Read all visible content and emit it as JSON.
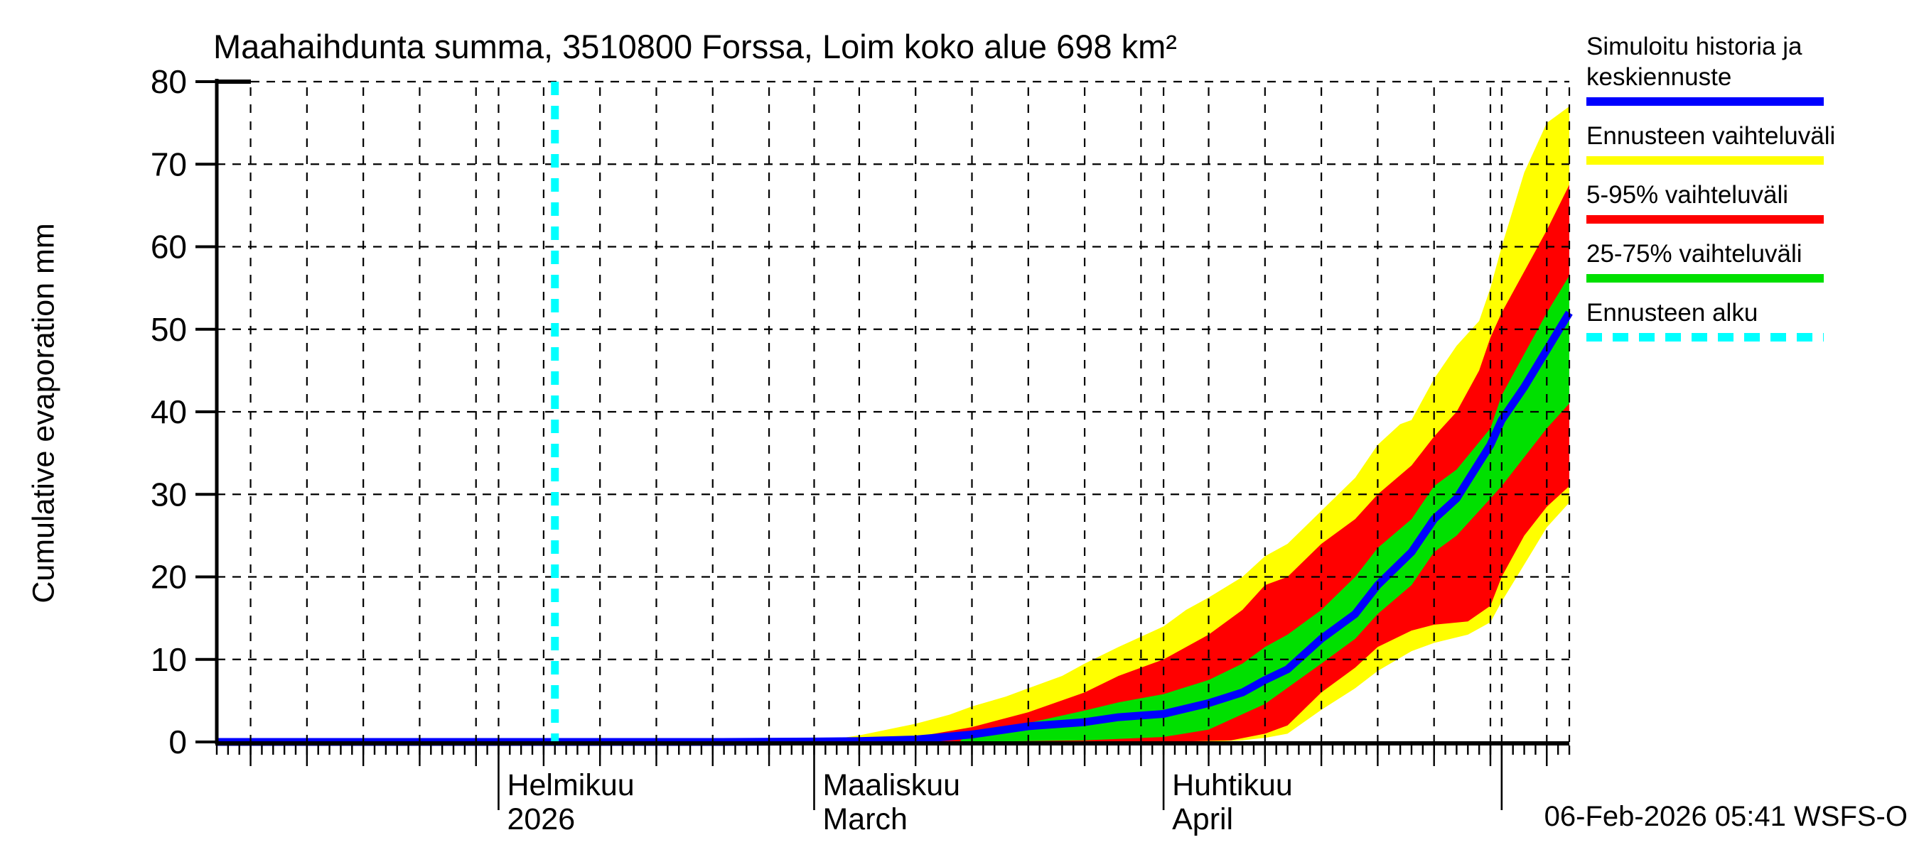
{
  "title": "Maahaihdunta summa, 3510800 Forssa, Loim koko alue 698 km²",
  "timestamp": "06-Feb-2026 05:41 WSFS-O",
  "y_axis": {
    "label": "Cumulative evaporation  mm",
    "ticks": [
      0,
      10,
      20,
      30,
      40,
      50,
      60,
      70,
      80
    ]
  },
  "x_axis": {
    "months": [
      {
        "day": 25,
        "line1": "Helmikuu",
        "line2": "2026"
      },
      {
        "day": 53,
        "line1": "Maaliskuu",
        "line2": "March"
      },
      {
        "day": 84,
        "line1": "Huhtikuu",
        "line2": "April"
      },
      {
        "day": 114,
        "line1": "",
        "line2": ""
      }
    ],
    "gridline_days": [
      3,
      8,
      13,
      18,
      23,
      25,
      29,
      34,
      39,
      44,
      49,
      53,
      57,
      62,
      67,
      72,
      77,
      82,
      84,
      88,
      93,
      98,
      103,
      108,
      113,
      114,
      118,
      120
    ],
    "month_tick_days": [
      25,
      53,
      84,
      114
    ],
    "total_days": 120
  },
  "legend": {
    "items": [
      {
        "label": "Simuloitu historia ja",
        "label2": "keskiennuste",
        "swatch": "blue-solid"
      },
      {
        "label": "Ennusteen vaihteluväli",
        "label2": "",
        "swatch": "yellow-solid"
      },
      {
        "label": "5-95% vaihteluväli",
        "label2": "",
        "swatch": "red-solid"
      },
      {
        "label": "25-75% vaihteluväli",
        "label2": "",
        "swatch": "green-solid"
      },
      {
        "label": "Ennusteen alku",
        "label2": "",
        "swatch": "cyan-dashed"
      }
    ]
  },
  "colors": {
    "median": "#0000ff",
    "range_full": "#ffff00",
    "range_5_95": "#ff0000",
    "range_25_75": "#00e000",
    "forecast_start": "#00ffff",
    "axis": "#000000"
  },
  "chart_data": {
    "type": "area",
    "title": "Maahaihdunta summa, 3510800 Forssa, Loim koko alue 698 km²",
    "xlabel": "",
    "ylabel": "Cumulative evaporation  mm",
    "ylim": [
      0,
      80
    ],
    "x_unit": "days from 07-Jan-2026",
    "x_range_days": [
      0,
      120
    ],
    "forecast_start_day": 30,
    "forecast_start_date": "06-Feb-2026",
    "grid": true,
    "legend_position": "top-right",
    "series": [
      {
        "name": "median_simulated_history_and_forecast",
        "color": "#0000ff",
        "points": [
          [
            0,
            0
          ],
          [
            30,
            0
          ],
          [
            44,
            0
          ],
          [
            53,
            0.05
          ],
          [
            57,
            0.1
          ],
          [
            62,
            0.3
          ],
          [
            67,
            0.9
          ],
          [
            72,
            1.9
          ],
          [
            77,
            2.4
          ],
          [
            80,
            3.0
          ],
          [
            84,
            3.4
          ],
          [
            88,
            4.7
          ],
          [
            91,
            6
          ],
          [
            93,
            7.5
          ],
          [
            95,
            8.8
          ],
          [
            98,
            12.5
          ],
          [
            101,
            15.5
          ],
          [
            103,
            19
          ],
          [
            106,
            23
          ],
          [
            108,
            27
          ],
          [
            110,
            29.5
          ],
          [
            113,
            36
          ],
          [
            114,
            39
          ],
          [
            116,
            43
          ],
          [
            118,
            47.5
          ],
          [
            120,
            52
          ]
        ]
      },
      {
        "name": "band_25_75_top",
        "color": "#00e000",
        "points": [
          [
            66,
            0.2
          ],
          [
            67,
            1.2
          ],
          [
            72,
            2.3
          ],
          [
            77,
            3.8
          ],
          [
            80,
            4.8
          ],
          [
            84,
            5.8
          ],
          [
            88,
            7.5
          ],
          [
            91,
            9.5
          ],
          [
            93,
            11.5
          ],
          [
            95,
            13
          ],
          [
            98,
            16
          ],
          [
            101,
            20
          ],
          [
            103,
            23.5
          ],
          [
            106,
            27
          ],
          [
            108,
            31
          ],
          [
            110,
            33
          ],
          [
            113,
            38
          ],
          [
            114,
            42
          ],
          [
            116,
            47
          ],
          [
            118,
            52
          ],
          [
            120,
            56.5
          ]
        ]
      },
      {
        "name": "band_25_75_bottom",
        "color": "#00e000",
        "points": [
          [
            66,
            0
          ],
          [
            77,
            0.2
          ],
          [
            84,
            0.6
          ],
          [
            88,
            1.5
          ],
          [
            93,
            4.6
          ],
          [
            98,
            9.5
          ],
          [
            101,
            12.5
          ],
          [
            103,
            15.5
          ],
          [
            106,
            19
          ],
          [
            108,
            23
          ],
          [
            110,
            25
          ],
          [
            113,
            29.5
          ],
          [
            114,
            31
          ],
          [
            116,
            34.5
          ],
          [
            118,
            38
          ],
          [
            120,
            41
          ]
        ]
      },
      {
        "name": "band_5_95_top",
        "color": "#ff0000",
        "points": [
          [
            60,
            0.2
          ],
          [
            62,
            0.6
          ],
          [
            67,
            1.8
          ],
          [
            72,
            3.6
          ],
          [
            77,
            6
          ],
          [
            80,
            8
          ],
          [
            84,
            10
          ],
          [
            88,
            13
          ],
          [
            91,
            16
          ],
          [
            93,
            19
          ],
          [
            95,
            20
          ],
          [
            98,
            24
          ],
          [
            101,
            27
          ],
          [
            103,
            30
          ],
          [
            106,
            33.5
          ],
          [
            108,
            37
          ],
          [
            110,
            40
          ],
          [
            112,
            45
          ],
          [
            113,
            49
          ],
          [
            114,
            52
          ],
          [
            116,
            57
          ],
          [
            118,
            62
          ],
          [
            120,
            67.5
          ]
        ]
      },
      {
        "name": "band_5_95_bottom",
        "color": "#ff0000",
        "points": [
          [
            60,
            0
          ],
          [
            84,
            0
          ],
          [
            90,
            0.2
          ],
          [
            93,
            1
          ],
          [
            95,
            2
          ],
          [
            98,
            6
          ],
          [
            101,
            9
          ],
          [
            103,
            11.5
          ],
          [
            106,
            13.5
          ],
          [
            108,
            14.2
          ],
          [
            111,
            14.6
          ],
          [
            113,
            16.5
          ],
          [
            114,
            20
          ],
          [
            116,
            25
          ],
          [
            118,
            28.5
          ],
          [
            120,
            31
          ]
        ]
      },
      {
        "name": "band_full_top",
        "color": "#ffff00",
        "points": [
          [
            54,
            0.2
          ],
          [
            57,
            0.8
          ],
          [
            62,
            2.2
          ],
          [
            65,
            3.3
          ],
          [
            67,
            4.3
          ],
          [
            70,
            5.5
          ],
          [
            72,
            6.5
          ],
          [
            75,
            8
          ],
          [
            77,
            9.5
          ],
          [
            80,
            11.5
          ],
          [
            84,
            14
          ],
          [
            86,
            16
          ],
          [
            88,
            17.5
          ],
          [
            91,
            20
          ],
          [
            93,
            22.5
          ],
          [
            95,
            24
          ],
          [
            98,
            28
          ],
          [
            101,
            32
          ],
          [
            103,
            36
          ],
          [
            105,
            38.5
          ],
          [
            106,
            39
          ],
          [
            108,
            44
          ],
          [
            110,
            48
          ],
          [
            112,
            51
          ],
          [
            113,
            55
          ],
          [
            114,
            60
          ],
          [
            116,
            69
          ],
          [
            118,
            75
          ],
          [
            120,
            77
          ]
        ]
      },
      {
        "name": "band_full_bottom",
        "color": "#ffff00",
        "points": [
          [
            54,
            0
          ],
          [
            88,
            0
          ],
          [
            91,
            0.2
          ],
          [
            93,
            0.5
          ],
          [
            95,
            1
          ],
          [
            98,
            3.9
          ],
          [
            101,
            6.5
          ],
          [
            103,
            8.6
          ],
          [
            106,
            11
          ],
          [
            108,
            12
          ],
          [
            111,
            13
          ],
          [
            113,
            14.5
          ],
          [
            114,
            17
          ],
          [
            116,
            21.5
          ],
          [
            118,
            26
          ],
          [
            120,
            29
          ]
        ]
      }
    ]
  }
}
